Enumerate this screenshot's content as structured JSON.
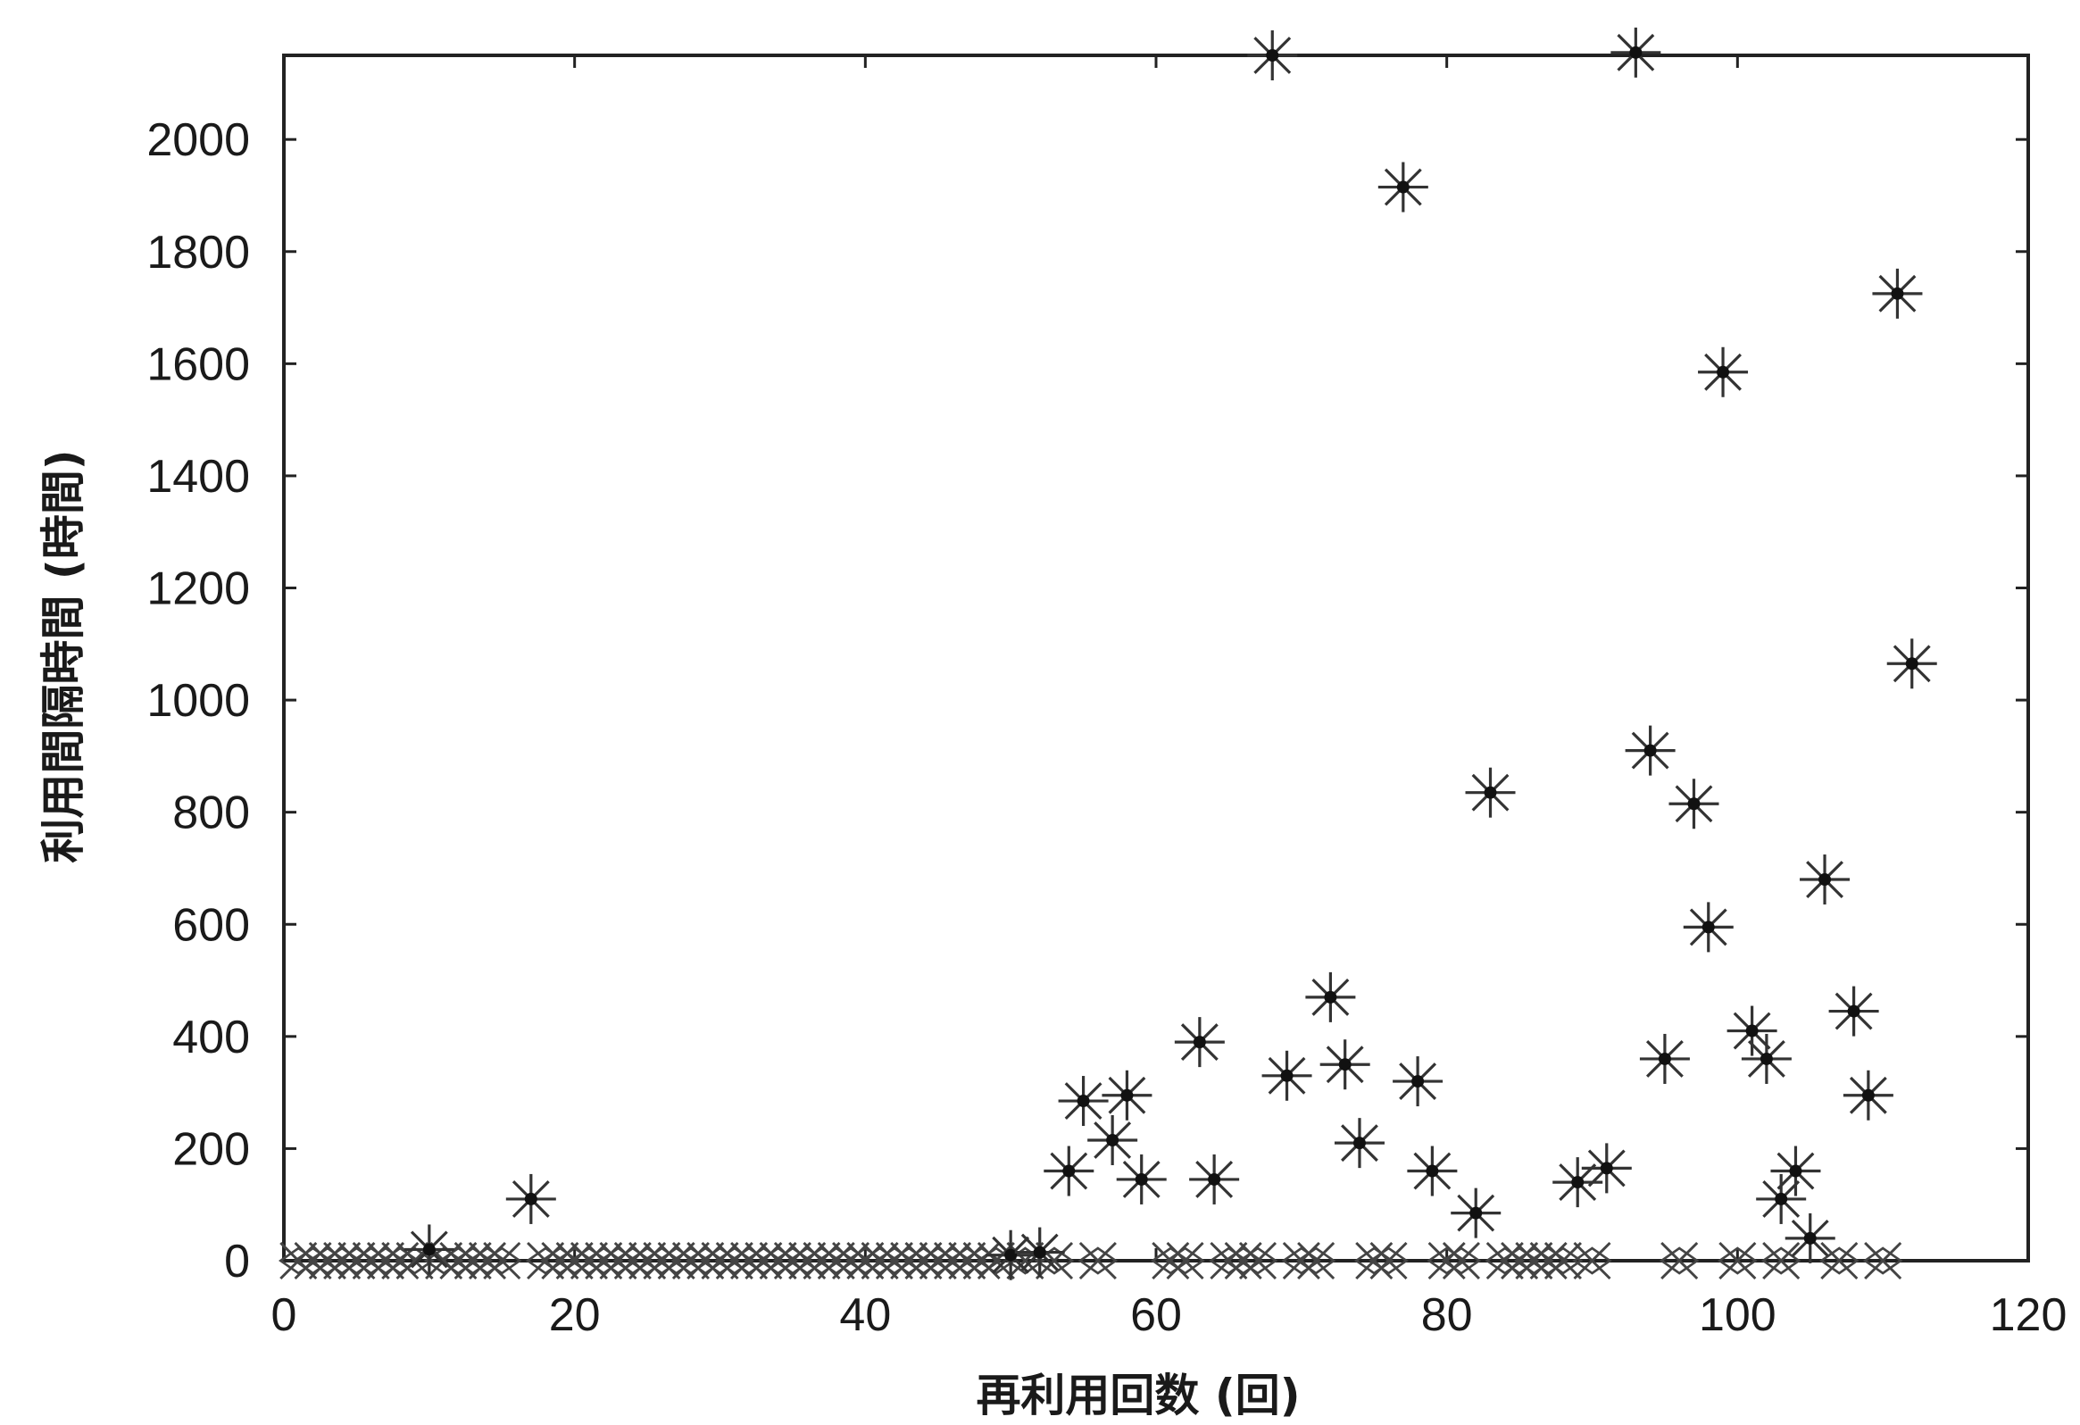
{
  "chart_data": {
    "type": "scatter",
    "xlabel": "再利用回数 (回)",
    "ylabel": "利用間隔時間 (時間)",
    "xlim": [
      0,
      120
    ],
    "ylim": [
      0,
      2150
    ],
    "xticks": [
      0,
      20,
      40,
      60,
      80,
      100,
      120
    ],
    "yticks": [
      0,
      200,
      400,
      600,
      800,
      1000,
      1200,
      1400,
      1600,
      1800,
      2000
    ],
    "grid": false,
    "series": [
      {
        "marker": "star",
        "points": [
          [
            17,
            110
          ],
          [
            10,
            20
          ],
          [
            50,
            10
          ],
          [
            52,
            15
          ],
          [
            54,
            160
          ],
          [
            55,
            285
          ],
          [
            57,
            215
          ],
          [
            58,
            295
          ],
          [
            59,
            145
          ],
          [
            63,
            390
          ],
          [
            64,
            145
          ],
          [
            68,
            2150
          ],
          [
            69,
            330
          ],
          [
            72,
            470
          ],
          [
            73,
            350
          ],
          [
            74,
            210
          ],
          [
            77,
            1915
          ],
          [
            78,
            320
          ],
          [
            79,
            160
          ],
          [
            82,
            85
          ],
          [
            83,
            835
          ],
          [
            89,
            140
          ],
          [
            91,
            165
          ],
          [
            93,
            2155
          ],
          [
            94,
            910
          ],
          [
            95,
            360
          ],
          [
            97,
            815
          ],
          [
            98,
            595
          ],
          [
            99,
            1585
          ],
          [
            101,
            410
          ],
          [
            102,
            360
          ],
          [
            103,
            110
          ],
          [
            104,
            160
          ],
          [
            105,
            40
          ],
          [
            106,
            680
          ],
          [
            108,
            445
          ],
          [
            109,
            295
          ],
          [
            111,
            1725
          ],
          [
            112,
            1065
          ]
        ]
      },
      {
        "marker": "x-diamond",
        "points": [
          [
            1,
            0
          ],
          [
            2,
            0
          ],
          [
            3,
            0
          ],
          [
            4,
            0
          ],
          [
            5,
            0
          ],
          [
            6,
            0
          ],
          [
            7,
            0
          ],
          [
            8,
            0
          ],
          [
            9,
            0
          ],
          [
            11,
            0
          ],
          [
            12,
            0
          ],
          [
            13,
            0
          ],
          [
            14,
            0
          ],
          [
            15,
            0
          ],
          [
            18,
            0
          ],
          [
            19,
            0
          ],
          [
            20,
            0
          ],
          [
            21,
            0
          ],
          [
            22,
            0
          ],
          [
            23,
            0
          ],
          [
            24,
            0
          ],
          [
            25,
            0
          ],
          [
            26,
            0
          ],
          [
            27,
            0
          ],
          [
            28,
            0
          ],
          [
            29,
            0
          ],
          [
            30,
            0
          ],
          [
            31,
            0
          ],
          [
            32,
            0
          ],
          [
            33,
            0
          ],
          [
            34,
            0
          ],
          [
            35,
            0
          ],
          [
            36,
            0
          ],
          [
            37,
            0
          ],
          [
            38,
            0
          ],
          [
            39,
            0
          ],
          [
            40,
            0
          ],
          [
            41,
            0
          ],
          [
            42,
            0
          ],
          [
            43,
            0
          ],
          [
            44,
            0
          ],
          [
            45,
            0
          ],
          [
            46,
            0
          ],
          [
            47,
            0
          ],
          [
            48,
            0
          ],
          [
            49,
            0
          ],
          [
            51,
            0
          ],
          [
            53,
            0
          ],
          [
            56,
            0
          ],
          [
            61,
            0
          ],
          [
            62,
            0
          ],
          [
            65,
            0
          ],
          [
            66,
            0
          ],
          [
            67,
            0
          ],
          [
            70,
            0
          ],
          [
            71,
            0
          ],
          [
            75,
            0
          ],
          [
            76,
            0
          ],
          [
            80,
            0
          ],
          [
            81,
            0
          ],
          [
            84,
            0
          ],
          [
            85,
            0
          ],
          [
            86,
            0
          ],
          [
            87,
            0
          ],
          [
            88,
            0
          ],
          [
            90,
            0
          ],
          [
            96,
            0
          ],
          [
            100,
            0
          ],
          [
            103,
            0
          ],
          [
            107,
            0
          ],
          [
            110,
            0
          ]
        ]
      }
    ]
  }
}
